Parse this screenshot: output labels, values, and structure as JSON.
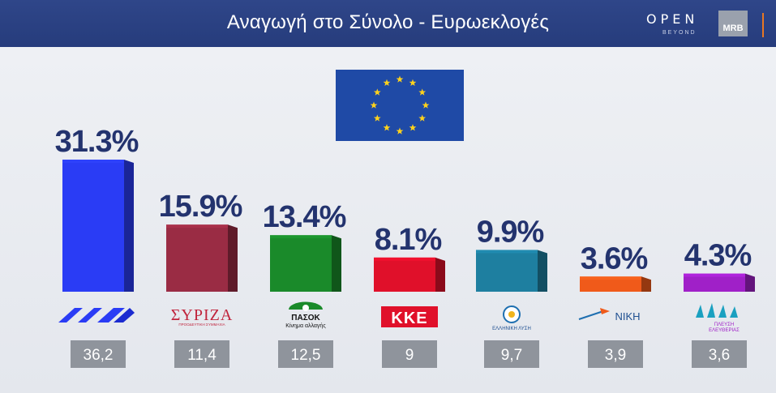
{
  "header": {
    "title": "Αναγωγή στο Σύνολο - Ευρωεκλογές",
    "open_logo": "OPEN",
    "open_tagline": "BEYOND",
    "mrb_logo": "MRB"
  },
  "flag": {
    "name": "eu-flag-icon",
    "background": "#1f4aa6",
    "stars": "#ffd21c"
  },
  "chart_data": {
    "type": "bar",
    "categories": [
      "ΝΔ",
      "ΣΥΡΙΖΑ",
      "ΠΑΣΟΚ",
      "ΚΚΕ",
      "ΕΛΛΗΝΙΚΗ ΛΥΣΗ",
      "ΝΙΚΗ",
      "ΠΛΕΥΣΗ ΕΛΕΥΘΕΡΙΑΣ"
    ],
    "values": [
      31.3,
      15.9,
      13.4,
      8.1,
      9.9,
      3.6,
      4.3
    ],
    "value_labels": [
      "31.3%",
      "15.9%",
      "13.4%",
      "8.1%",
      "9.9%",
      "3.6%",
      "4.3%"
    ],
    "comparison_labels": [
      "36,2",
      "11,4",
      "12,5",
      "9",
      "9,7",
      "3,9",
      "3,6"
    ],
    "colors": [
      "#2a3cf5",
      "#9a2c44",
      "#1a8a2a",
      "#e0102a",
      "#1e7fa0",
      "#f05a1a",
      "#a020c8"
    ],
    "ylim": [
      0,
      31.3
    ]
  },
  "logos": {
    "nd": "ΝΔ",
    "syriza": "ΣΥΡΙΖΑ",
    "syriza_sub": "ΠΡΟΟΔΕΥΤΙΚΗ ΣΥΜΜΑΧΙΑ",
    "pasok": "ΠΑΣΟΚ",
    "pasok_sub": "Κίνημα αλλαγής",
    "kke": "ΚΚΕ",
    "el_lysi": "ΕΛΛΗΝΙΚΗ ΛΥΣΗ",
    "niki": "ΝΙΚΗ",
    "plefsi_1": "ΠΛΕΥΣΗ",
    "plefsi_2": "ΕΛΕΥΘΕΡΙΑΣ"
  }
}
